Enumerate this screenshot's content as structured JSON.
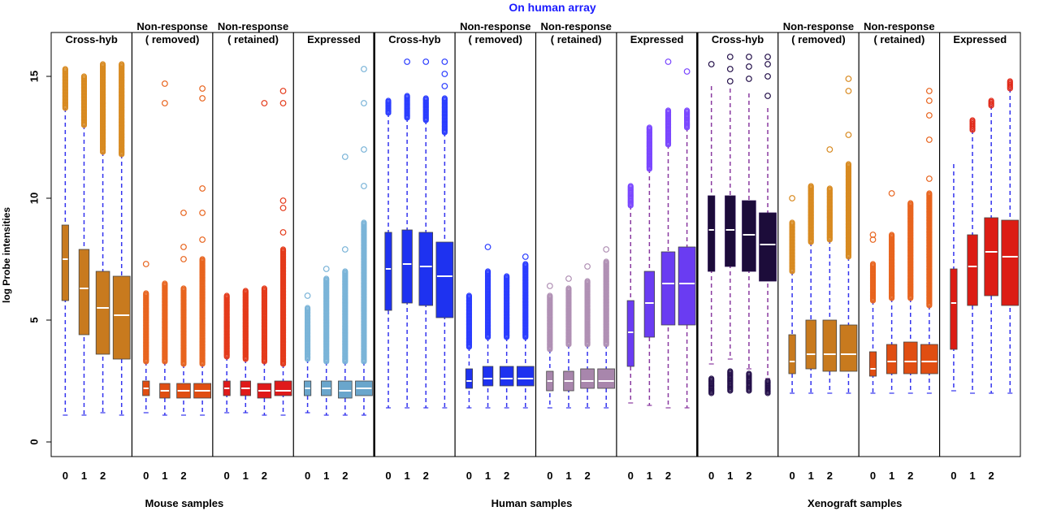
{
  "chart_data": {
    "type": "box",
    "title": "On human array",
    "title_color": "#1b1bff",
    "ylabel": "log Probe intensities",
    "ylim": [
      -0.6,
      16.8
    ],
    "yticks": [
      0,
      5,
      10,
      15
    ],
    "groups": [
      {
        "label": "Mouse samples",
        "panels": [
          0,
          1,
          2,
          3
        ]
      },
      {
        "label": "Human samples",
        "panels": [
          4,
          5,
          6,
          7
        ]
      },
      {
        "label": "Xenograft samples",
        "panels": [
          8,
          9,
          10,
          11
        ]
      }
    ],
    "panels": [
      {
        "title": "Cross-hyb",
        "color": "#c87a1e",
        "outlier_color": "#d88a20",
        "whisker_color": "#3333ee",
        "boxes": [
          {
            "tick": "0",
            "min": 1.1,
            "q1": 5.8,
            "median": 7.5,
            "q3": 8.9,
            "max": 13.7,
            "out_lo": 13.7,
            "out_hi": 15.3,
            "sparse": []
          },
          {
            "tick": "1",
            "min": 1.1,
            "q1": 4.4,
            "median": 6.3,
            "q3": 7.9,
            "max": 13.0,
            "out_lo": 13.0,
            "out_hi": 15.0,
            "sparse": []
          },
          {
            "tick": "2",
            "min": 1.2,
            "q1": 3.6,
            "median": 5.5,
            "q3": 7.0,
            "max": 11.9,
            "out_lo": 11.9,
            "out_hi": 15.5,
            "sparse": []
          },
          {
            "tick": "",
            "min": 1.1,
            "q1": 3.4,
            "median": 5.2,
            "q3": 6.8,
            "max": 11.8,
            "out_lo": 11.8,
            "out_hi": 15.5,
            "sparse": []
          }
        ]
      },
      {
        "title": "Non-response\n( removed)",
        "color": "#e04e12",
        "outlier_color": "#e8641e",
        "whisker_color": "#3333ee",
        "boxes": [
          {
            "tick": "0",
            "min": 1.2,
            "q1": 1.9,
            "median": 2.2,
            "q3": 2.5,
            "max": 3.3,
            "out_lo": 3.3,
            "out_hi": 6.1,
            "sparse": [
              7.3
            ]
          },
          {
            "tick": "1",
            "min": 1.1,
            "q1": 1.8,
            "median": 2.1,
            "q3": 2.4,
            "max": 3.3,
            "out_lo": 3.3,
            "out_hi": 6.5,
            "sparse": [
              13.9,
              14.7
            ]
          },
          {
            "tick": "2",
            "min": 1.1,
            "q1": 1.8,
            "median": 2.1,
            "q3": 2.4,
            "max": 3.2,
            "out_lo": 3.2,
            "out_hi": 6.3,
            "sparse": [
              7.5,
              8.0,
              9.4
            ]
          },
          {
            "tick": "",
            "min": 1.1,
            "q1": 1.8,
            "median": 2.1,
            "q3": 2.4,
            "max": 3.2,
            "out_lo": 3.2,
            "out_hi": 7.5,
            "sparse": [
              8.3,
              9.4,
              10.4,
              14.1,
              14.5
            ]
          }
        ]
      },
      {
        "title": "Non-response\n( retained)",
        "color": "#e01a1a",
        "outlier_color": "#e43a1a",
        "whisker_color": "#3333ee",
        "boxes": [
          {
            "tick": "0",
            "min": 1.2,
            "q1": 1.9,
            "median": 2.2,
            "q3": 2.5,
            "max": 3.5,
            "out_lo": 3.5,
            "out_hi": 6.0,
            "sparse": []
          },
          {
            "tick": "1",
            "min": 1.2,
            "q1": 1.9,
            "median": 2.2,
            "q3": 2.5,
            "max": 3.4,
            "out_lo": 3.4,
            "out_hi": 6.2,
            "sparse": []
          },
          {
            "tick": "2",
            "min": 1.1,
            "q1": 1.8,
            "median": 2.1,
            "q3": 2.4,
            "max": 3.3,
            "out_lo": 3.3,
            "out_hi": 6.3,
            "sparse": [
              13.9
            ]
          },
          {
            "tick": "",
            "min": 1.1,
            "q1": 1.9,
            "median": 2.1,
            "q3": 2.5,
            "max": 3.2,
            "out_lo": 3.2,
            "out_hi": 7.9,
            "sparse": [
              8.6,
              9.6,
              9.9,
              13.9,
              14.4
            ]
          }
        ]
      },
      {
        "title": "Expressed",
        "color": "#6aa6cc",
        "outlier_color": "#7ab4d8",
        "whisker_color": "#3333ee",
        "boxes": [
          {
            "tick": "0",
            "min": 1.2,
            "q1": 1.9,
            "median": 2.2,
            "q3": 2.5,
            "max": 3.4,
            "out_lo": 3.4,
            "out_hi": 5.5,
            "sparse": [
              6.0
            ]
          },
          {
            "tick": "1",
            "min": 1.1,
            "q1": 1.9,
            "median": 2.2,
            "q3": 2.5,
            "max": 3.3,
            "out_lo": 3.3,
            "out_hi": 6.7,
            "sparse": [
              7.1
            ]
          },
          {
            "tick": "2",
            "min": 1.1,
            "q1": 1.8,
            "median": 2.1,
            "q3": 2.5,
            "max": 3.3,
            "out_lo": 3.3,
            "out_hi": 7.0,
            "sparse": [
              7.9,
              11.7
            ]
          },
          {
            "tick": "",
            "min": 1.1,
            "q1": 1.9,
            "median": 2.2,
            "q3": 2.5,
            "max": 3.3,
            "out_lo": 3.3,
            "out_hi": 9.0,
            "sparse": [
              10.5,
              12.0,
              13.9,
              15.3
            ]
          }
        ]
      },
      {
        "title": "Cross-hyb",
        "color": "#1e32f0",
        "outlier_color": "#2a3cff",
        "whisker_color": "#3333ee",
        "boxes": [
          {
            "tick": "0",
            "min": 1.4,
            "q1": 5.4,
            "median": 7.1,
            "q3": 8.6,
            "max": 13.5,
            "out_lo": 13.5,
            "out_hi": 14.0,
            "sparse": []
          },
          {
            "tick": "1",
            "min": 1.4,
            "q1": 5.7,
            "median": 7.3,
            "q3": 8.7,
            "max": 13.3,
            "out_lo": 13.3,
            "out_hi": 14.2,
            "sparse": [
              15.6
            ]
          },
          {
            "tick": "2",
            "min": 1.4,
            "q1": 5.6,
            "median": 7.2,
            "q3": 8.6,
            "max": 13.2,
            "out_lo": 13.2,
            "out_hi": 14.1,
            "sparse": [
              15.6
            ]
          },
          {
            "tick": "",
            "min": 1.4,
            "q1": 5.1,
            "median": 6.8,
            "q3": 8.2,
            "max": 12.7,
            "out_lo": 12.7,
            "out_hi": 14.1,
            "sparse": [
              14.6,
              15.1,
              15.6
            ]
          }
        ]
      },
      {
        "title": "Non-response\n( removed)",
        "color": "#1e32f0",
        "outlier_color": "#2a3cff",
        "whisker_color": "#3333ee",
        "boxes": [
          {
            "tick": "0",
            "min": 1.4,
            "q1": 2.2,
            "median": 2.5,
            "q3": 3.0,
            "max": 3.9,
            "out_lo": 3.9,
            "out_hi": 6.0,
            "sparse": []
          },
          {
            "tick": "1",
            "min": 1.4,
            "q1": 2.3,
            "median": 2.6,
            "q3": 3.1,
            "max": 4.3,
            "out_lo": 4.3,
            "out_hi": 7.0,
            "sparse": [
              8.0
            ]
          },
          {
            "tick": "2",
            "min": 1.4,
            "q1": 2.3,
            "median": 2.6,
            "q3": 3.1,
            "max": 4.3,
            "out_lo": 4.3,
            "out_hi": 6.8,
            "sparse": []
          },
          {
            "tick": "",
            "min": 1.4,
            "q1": 2.3,
            "median": 2.6,
            "q3": 3.1,
            "max": 4.3,
            "out_lo": 4.3,
            "out_hi": 7.3,
            "sparse": [
              7.6
            ]
          }
        ]
      },
      {
        "title": "Non-response\n( retained)",
        "color": "#a886ac",
        "outlier_color": "#b090b4",
        "whisker_color": "#3333ee",
        "boxes": [
          {
            "tick": "0",
            "min": 1.4,
            "q1": 2.1,
            "median": 2.5,
            "q3": 2.9,
            "max": 3.8,
            "out_lo": 3.8,
            "out_hi": 6.0,
            "sparse": [
              6.4
            ]
          },
          {
            "tick": "1",
            "min": 1.4,
            "q1": 2.1,
            "median": 2.5,
            "q3": 2.9,
            "max": 4.0,
            "out_lo": 4.0,
            "out_hi": 6.3,
            "sparse": [
              6.7
            ]
          },
          {
            "tick": "2",
            "min": 1.4,
            "q1": 2.2,
            "median": 2.5,
            "q3": 3.0,
            "max": 4.0,
            "out_lo": 4.0,
            "out_hi": 6.6,
            "sparse": [
              7.2
            ]
          },
          {
            "tick": "",
            "min": 1.4,
            "q1": 2.2,
            "median": 2.5,
            "q3": 3.0,
            "max": 4.0,
            "out_lo": 4.0,
            "out_hi": 7.4,
            "sparse": [
              7.9
            ]
          }
        ]
      },
      {
        "title": "Expressed",
        "color": "#6a3cf2",
        "outlier_color": "#7a46ff",
        "whisker_color": "#8a3aa0",
        "boxes": [
          {
            "tick": "0",
            "min": 1.6,
            "q1": 3.1,
            "median": 4.5,
            "q3": 5.8,
            "max": 9.7,
            "out_lo": 9.7,
            "out_hi": 10.5,
            "sparse": []
          },
          {
            "tick": "1",
            "min": 1.5,
            "q1": 4.3,
            "median": 5.7,
            "q3": 7.0,
            "max": 11.2,
            "out_lo": 11.2,
            "out_hi": 12.9,
            "sparse": []
          },
          {
            "tick": "2",
            "min": 1.4,
            "q1": 4.8,
            "median": 6.5,
            "q3": 7.8,
            "max": 12.2,
            "out_lo": 12.2,
            "out_hi": 13.6,
            "sparse": [
              15.6
            ]
          },
          {
            "tick": "",
            "min": 1.4,
            "q1": 4.8,
            "median": 6.5,
            "q3": 8.0,
            "max": 12.9,
            "out_lo": 12.9,
            "out_hi": 13.6,
            "sparse": [
              15.2
            ]
          }
        ]
      },
      {
        "title": "Cross-hyb",
        "color": "#1c0c3a",
        "outlier_color": "#24104a",
        "whisker_color": "#8a3aa0",
        "boxes": [
          {
            "tick": "0",
            "min": 3.2,
            "q1": 7.0,
            "median": 8.7,
            "q3": 10.1,
            "max": 14.6,
            "out_lo": 2.0,
            "out_hi": 2.6,
            "sparse": [
              15.5
            ]
          },
          {
            "tick": "1",
            "min": 3.4,
            "q1": 7.2,
            "median": 8.7,
            "q3": 10.1,
            "max": 14.5,
            "out_lo": 2.1,
            "out_hi": 2.9,
            "sparse": [
              14.8,
              15.3,
              15.8
            ]
          },
          {
            "tick": "2",
            "min": 3.0,
            "q1": 7.0,
            "median": 8.5,
            "q3": 9.9,
            "max": 14.3,
            "out_lo": 2.1,
            "out_hi": 2.8,
            "sparse": [
              14.9,
              15.4,
              15.8
            ]
          },
          {
            "tick": "",
            "min": 2.6,
            "q1": 6.6,
            "median": 8.1,
            "q3": 9.4,
            "max": 13.7,
            "out_lo": 2.0,
            "out_hi": 2.5,
            "sparse": [
              14.2,
              15.0,
              15.5,
              15.8
            ]
          }
        ]
      },
      {
        "title": "Non-response\n( removed)",
        "color": "#c87a1e",
        "outlier_color": "#d88a20",
        "whisker_color": "#3333ee",
        "boxes": [
          {
            "tick": "0",
            "min": 2.0,
            "q1": 2.8,
            "median": 3.3,
            "q3": 4.4,
            "max": 7.0,
            "out_lo": 7.0,
            "out_hi": 9.0,
            "sparse": [
              10.0
            ]
          },
          {
            "tick": "1",
            "min": 2.0,
            "q1": 3.0,
            "median": 3.6,
            "q3": 5.0,
            "max": 8.2,
            "out_lo": 8.2,
            "out_hi": 10.5,
            "sparse": []
          },
          {
            "tick": "2",
            "min": 2.0,
            "q1": 2.9,
            "median": 3.6,
            "q3": 5.0,
            "max": 8.3,
            "out_lo": 8.3,
            "out_hi": 10.4,
            "sparse": [
              12.0
            ]
          },
          {
            "tick": "",
            "min": 2.0,
            "q1": 2.9,
            "median": 3.6,
            "q3": 4.8,
            "max": 7.6,
            "out_lo": 7.6,
            "out_hi": 11.4,
            "sparse": [
              12.6,
              14.4,
              14.9
            ]
          }
        ]
      },
      {
        "title": "Non-response\n( retained)",
        "color": "#e04e12",
        "outlier_color": "#e8641e",
        "whisker_color": "#3333ee",
        "boxes": [
          {
            "tick": "0",
            "min": 2.0,
            "q1": 2.7,
            "median": 3.0,
            "q3": 3.7,
            "max": 5.8,
            "out_lo": 5.8,
            "out_hi": 7.3,
            "sparse": [
              8.3,
              8.5
            ]
          },
          {
            "tick": "1",
            "min": 2.0,
            "q1": 2.8,
            "median": 3.3,
            "q3": 4.0,
            "max": 5.9,
            "out_lo": 5.9,
            "out_hi": 8.5,
            "sparse": [
              10.2
            ]
          },
          {
            "tick": "2",
            "min": 2.0,
            "q1": 2.8,
            "median": 3.3,
            "q3": 4.1,
            "max": 5.9,
            "out_lo": 5.9,
            "out_hi": 9.8,
            "sparse": []
          },
          {
            "tick": "",
            "min": 2.0,
            "q1": 2.8,
            "median": 3.3,
            "q3": 4.0,
            "max": 5.6,
            "out_lo": 5.6,
            "out_hi": 10.2,
            "sparse": [
              10.8,
              12.4,
              13.4,
              14.0,
              14.4
            ]
          }
        ]
      },
      {
        "title": "Expressed",
        "color": "#dc1c14",
        "outlier_color": "#e02818",
        "whisker_color": "#3333ee",
        "boxes": [
          {
            "tick": "0",
            "min": 2.1,
            "q1": 3.8,
            "median": 5.7,
            "q3": 7.1,
            "max": 11.4,
            "out_lo": 11.4,
            "out_hi": 11.4,
            "sparse": []
          },
          {
            "tick": "1",
            "min": 2.0,
            "q1": 5.6,
            "median": 7.2,
            "q3": 8.5,
            "max": 12.8,
            "out_lo": 12.8,
            "out_hi": 13.2,
            "sparse": []
          },
          {
            "tick": "2",
            "min": 2.0,
            "q1": 6.0,
            "median": 7.8,
            "q3": 9.2,
            "max": 13.8,
            "out_lo": 13.8,
            "out_hi": 14.0,
            "sparse": []
          },
          {
            "tick": "",
            "min": 2.0,
            "q1": 5.6,
            "median": 7.6,
            "q3": 9.1,
            "max": 14.5,
            "out_lo": 14.5,
            "out_hi": 14.8,
            "sparse": []
          }
        ]
      }
    ]
  }
}
